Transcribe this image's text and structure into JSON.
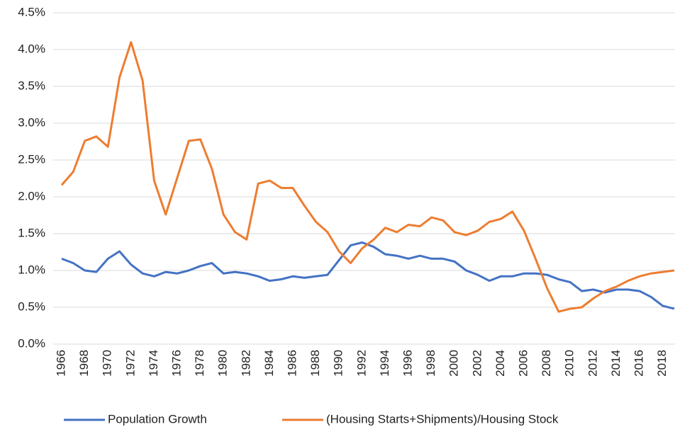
{
  "chart_data": {
    "type": "line",
    "categories": [
      "1966",
      null,
      "1968",
      null,
      "1970",
      null,
      "1972",
      null,
      "1974",
      null,
      "1976",
      null,
      "1978",
      null,
      "1980",
      null,
      "1982",
      null,
      "1984",
      null,
      "1986",
      null,
      "1988",
      null,
      "1990",
      null,
      "1992",
      null,
      "1994",
      null,
      "1996",
      null,
      "1998",
      null,
      "2000",
      null,
      "2002",
      null,
      "2004",
      null,
      "2006",
      null,
      "2008",
      null,
      "2010",
      null,
      "2012",
      null,
      "2014",
      null,
      "2016",
      null,
      "2018",
      null
    ],
    "series": [
      {
        "name": "Population Growth",
        "color": "#4472c4",
        "values": [
          1.16,
          1.1,
          1.0,
          0.98,
          1.16,
          1.26,
          1.08,
          0.96,
          0.92,
          0.98,
          0.96,
          1.0,
          1.06,
          1.1,
          0.96,
          0.98,
          0.96,
          0.92,
          0.86,
          0.88,
          0.92,
          0.9,
          0.92,
          0.94,
          1.14,
          1.34,
          1.38,
          1.32,
          1.22,
          1.2,
          1.16,
          1.2,
          1.16,
          1.16,
          1.12,
          1.0,
          0.94,
          0.86,
          0.92,
          0.92,
          0.96,
          0.96,
          0.94,
          0.88,
          0.84,
          0.72,
          0.74,
          0.7,
          0.74,
          0.74,
          0.72,
          0.64,
          0.52,
          0.48
        ]
      },
      {
        "name": "(Housing Starts+Shipments)/Housing Stock",
        "color": "#ed7d31",
        "values": [
          2.16,
          2.34,
          2.76,
          2.82,
          2.68,
          3.62,
          4.1,
          3.58,
          2.22,
          1.76,
          2.26,
          2.76,
          2.78,
          2.38,
          1.76,
          1.52,
          1.42,
          2.18,
          2.22,
          2.12,
          2.12,
          1.88,
          1.66,
          1.52,
          1.26,
          1.1,
          1.3,
          1.42,
          1.58,
          1.52,
          1.62,
          1.6,
          1.72,
          1.68,
          1.52,
          1.48,
          1.54,
          1.66,
          1.7,
          1.8,
          1.54,
          1.16,
          0.76,
          0.44,
          0.48,
          0.5,
          0.62,
          0.72,
          0.78,
          0.86,
          0.92,
          0.96,
          0.98,
          1.0
        ]
      }
    ],
    "ylim": [
      0,
      4.5
    ],
    "yticks": [
      {
        "value": 0,
        "label": "0.0%"
      },
      {
        "value": 0.5,
        "label": "0.5%"
      },
      {
        "value": 1,
        "label": "1.0%"
      },
      {
        "value": 1.5,
        "label": "1.5%"
      },
      {
        "value": 2,
        "label": "2.0%"
      },
      {
        "value": 2.5,
        "label": "2.5%"
      },
      {
        "value": 3,
        "label": "3.0%"
      },
      {
        "value": 3.5,
        "label": "3.5%"
      },
      {
        "value": 4,
        "label": "4.0%"
      },
      {
        "value": 4.5,
        "label": "4.5%"
      }
    ],
    "grid": true,
    "legend": "bottom"
  }
}
